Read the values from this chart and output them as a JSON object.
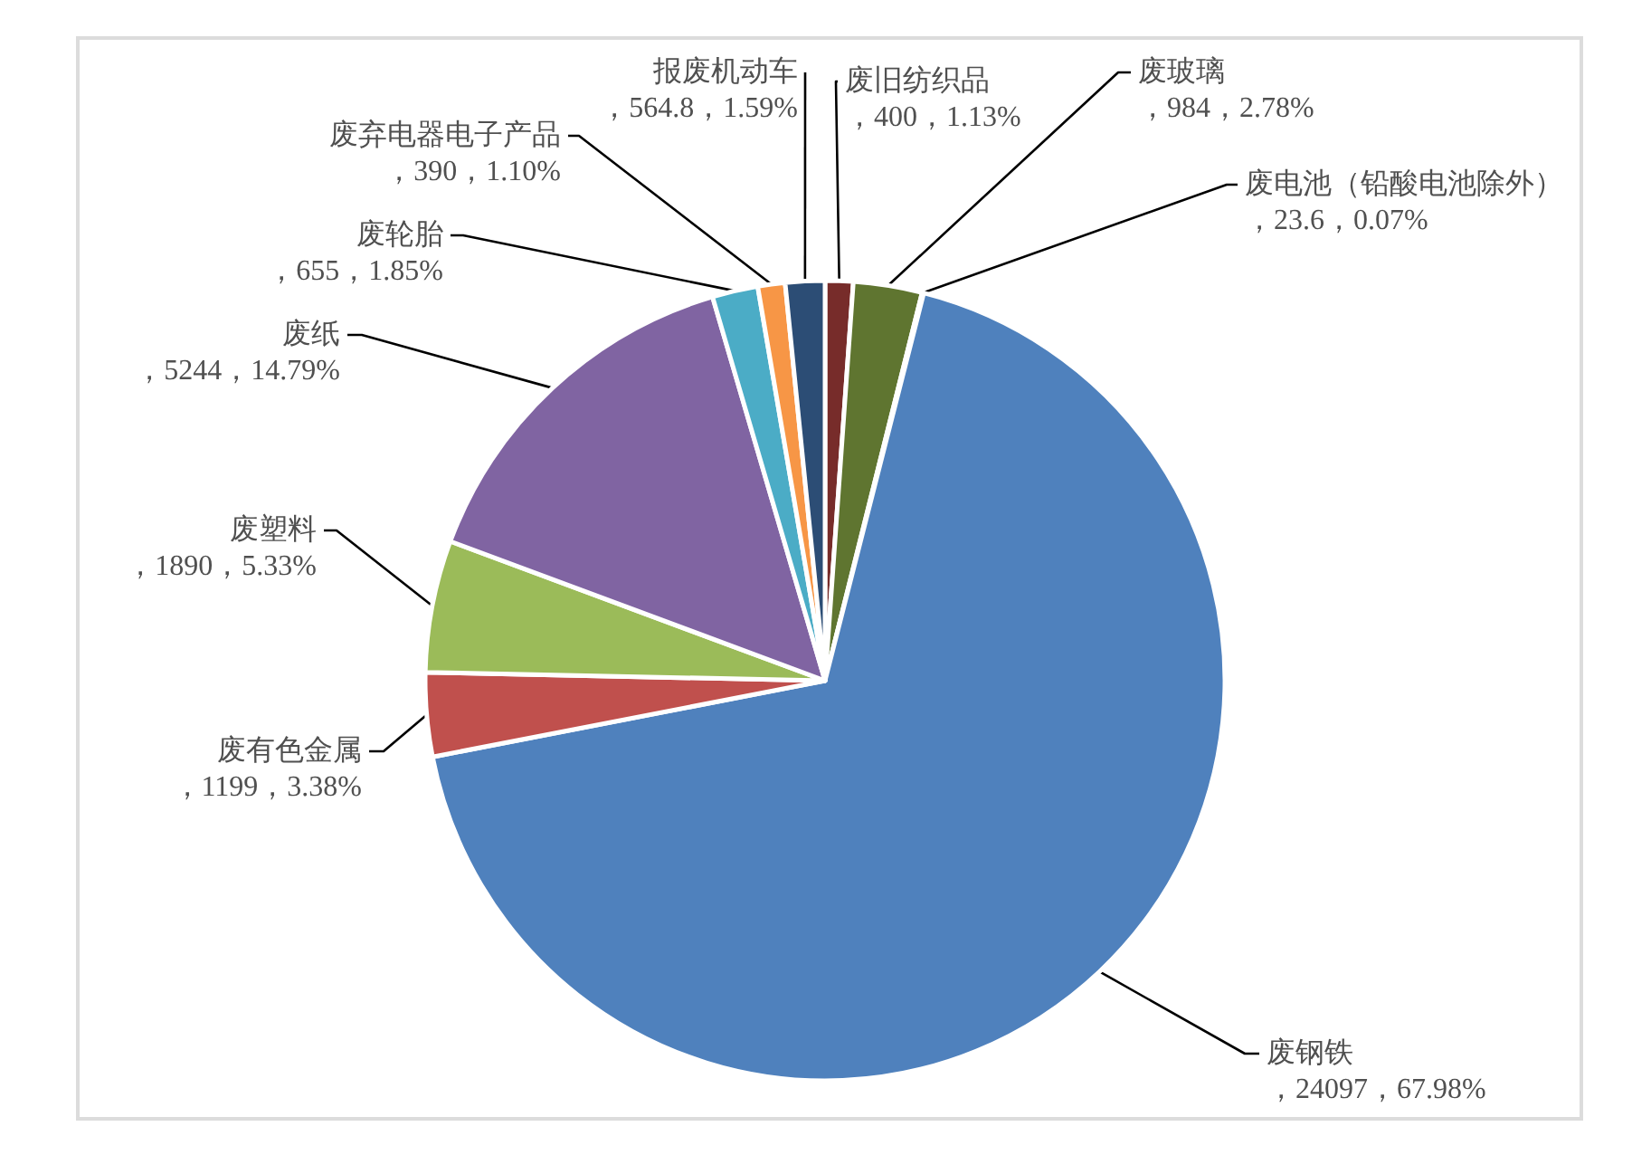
{
  "chart_data": {
    "type": "pie",
    "categories": [
      "废旧纺织品",
      "废玻璃",
      "废电池（铅酸电池除外）",
      "废钢铁",
      "废有色金属",
      "废塑料",
      "废纸",
      "废轮胎",
      "废弃电器电子产品",
      "报废机动车"
    ],
    "values": [
      400,
      984,
      23.6,
      24097,
      1199,
      1890,
      5244,
      655,
      390,
      564.8
    ],
    "colors": [
      "#772c2a",
      "#5f7530",
      "#4d3b62",
      "#4f81bd",
      "#c0504d",
      "#9bbb59",
      "#8064a2",
      "#4bacc6",
      "#f79646",
      "#2c4d75"
    ],
    "value_labels": [
      "，400，1.13%",
      "，984，2.78%",
      "，23.6，0.07%",
      "，24097，67.98%",
      "，1199，3.38%",
      "，1890，5.33%",
      "，5244，14.79%",
      "，655，1.85%",
      "，390，1.10%",
      "，564.8，1.59%"
    ],
    "legend": false
  }
}
